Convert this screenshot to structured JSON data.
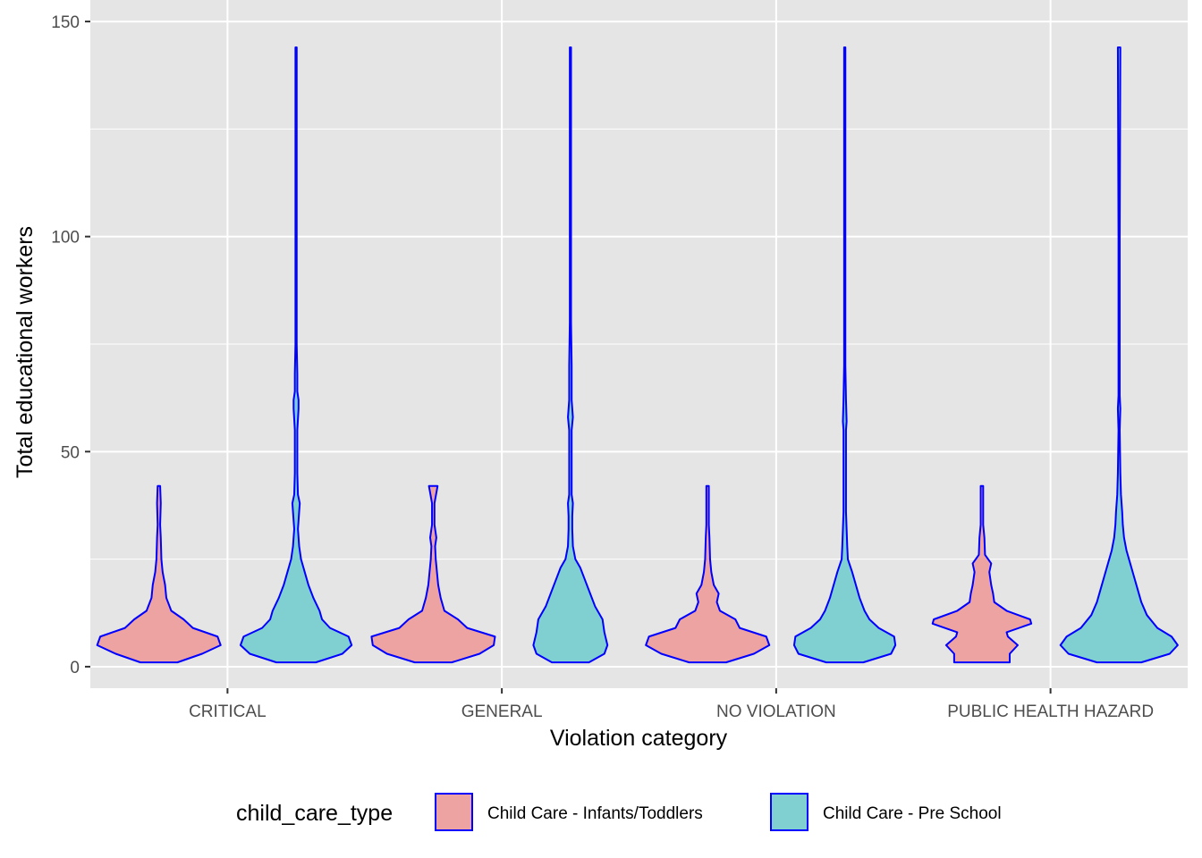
{
  "chart_data": {
    "type": "violin",
    "xlabel": "Violation category",
    "ylabel": "Total educational workers",
    "ylim": [
      -5,
      155
    ],
    "y_ticks": [
      0,
      50,
      100,
      150
    ],
    "grid": true,
    "legend_position": "bottom",
    "categories": [
      "CRITICAL",
      "GENERAL",
      "NO VIOLATION",
      "PUBLIC HEALTH HAZARD"
    ],
    "legend": {
      "title": "child_care_type",
      "entries": [
        "Child Care - Infants/Toddlers",
        "Child Care - Pre School"
      ]
    },
    "colors": {
      "panel_background": "#e5e5e5",
      "grid": "#ffffff",
      "outline": "#0000ff",
      "series": [
        "#eea3a3",
        "#80cfd1"
      ]
    },
    "series": [
      {
        "name": "Child Care - Infants/Toddlers",
        "violins": [
          {
            "category": "CRITICAL",
            "ymin": 1,
            "ymax": 42,
            "profile": [
              [
                1,
                0.3
              ],
              [
                3,
                0.7
              ],
              [
                5,
                1.0
              ],
              [
                7,
                0.95
              ],
              [
                9,
                0.55
              ],
              [
                11,
                0.4
              ],
              [
                13,
                0.2
              ],
              [
                16,
                0.12
              ],
              [
                19,
                0.1
              ],
              [
                22,
                0.06
              ],
              [
                25,
                0.04
              ],
              [
                30,
                0.03
              ],
              [
                33,
                0.02
              ],
              [
                38,
                0.03
              ],
              [
                42,
                0.02
              ]
            ]
          },
          {
            "category": "GENERAL",
            "ymin": 1,
            "ymax": 42,
            "profile": [
              [
                1,
                0.3
              ],
              [
                3,
                0.75
              ],
              [
                5,
                0.98
              ],
              [
                7,
                1.0
              ],
              [
                9,
                0.55
              ],
              [
                11,
                0.4
              ],
              [
                13,
                0.18
              ],
              [
                16,
                0.12
              ],
              [
                19,
                0.08
              ],
              [
                22,
                0.06
              ],
              [
                25,
                0.04
              ],
              [
                28,
                0.03
              ],
              [
                30,
                0.05
              ],
              [
                33,
                0.02
              ],
              [
                38,
                0.02
              ],
              [
                42,
                0.07
              ]
            ]
          },
          {
            "category": "NO VIOLATION",
            "ymin": 1,
            "ymax": 42,
            "profile": [
              [
                1,
                0.3
              ],
              [
                3,
                0.75
              ],
              [
                5,
                1.0
              ],
              [
                7,
                0.95
              ],
              [
                9,
                0.52
              ],
              [
                11,
                0.45
              ],
              [
                13,
                0.2
              ],
              [
                15,
                0.15
              ],
              [
                17,
                0.18
              ],
              [
                19,
                0.1
              ],
              [
                22,
                0.06
              ],
              [
                25,
                0.04
              ],
              [
                30,
                0.03
              ],
              [
                33,
                0.02
              ],
              [
                38,
                0.02
              ],
              [
                42,
                0.02
              ]
            ]
          },
          {
            "category": "PUBLIC HEALTH HAZARD",
            "ymin": 1,
            "ymax": 42,
            "profile": [
              [
                1,
                0.45
              ],
              [
                3,
                0.45
              ],
              [
                5,
                0.58
              ],
              [
                7,
                0.42
              ],
              [
                8,
                0.4
              ],
              [
                10,
                0.8
              ],
              [
                11,
                0.78
              ],
              [
                13,
                0.4
              ],
              [
                15,
                0.2
              ],
              [
                17,
                0.18
              ],
              [
                19,
                0.15
              ],
              [
                22,
                0.12
              ],
              [
                24,
                0.15
              ],
              [
                26,
                0.05
              ],
              [
                30,
                0.04
              ],
              [
                33,
                0.02
              ],
              [
                38,
                0.02
              ],
              [
                42,
                0.02
              ]
            ]
          }
        ]
      },
      {
        "name": "Child Care - Pre School",
        "violins": [
          {
            "category": "CRITICAL",
            "ymin": 1,
            "ymax": 144,
            "profile": [
              [
                1,
                0.32
              ],
              [
                3,
                0.75
              ],
              [
                5,
                0.9
              ],
              [
                7,
                0.85
              ],
              [
                9,
                0.55
              ],
              [
                11,
                0.42
              ],
              [
                13,
                0.38
              ],
              [
                16,
                0.28
              ],
              [
                19,
                0.2
              ],
              [
                22,
                0.14
              ],
              [
                25,
                0.08
              ],
              [
                28,
                0.05
              ],
              [
                32,
                0.03
              ],
              [
                36,
                0.05
              ],
              [
                38,
                0.06
              ],
              [
                40,
                0.03
              ],
              [
                45,
                0.02
              ],
              [
                55,
                0.02
              ],
              [
                60,
                0.04
              ],
              [
                62,
                0.04
              ],
              [
                64,
                0.02
              ],
              [
                68,
                0.02
              ],
              [
                75,
                0.01
              ],
              [
                100,
                0.01
              ],
              [
                144,
                0.01
              ]
            ]
          },
          {
            "category": "GENERAL",
            "ymin": 1,
            "ymax": 144,
            "profile": [
              [
                1,
                0.3
              ],
              [
                3,
                0.55
              ],
              [
                5,
                0.6
              ],
              [
                8,
                0.55
              ],
              [
                11,
                0.52
              ],
              [
                14,
                0.4
              ],
              [
                17,
                0.32
              ],
              [
                20,
                0.24
              ],
              [
                23,
                0.16
              ],
              [
                25,
                0.08
              ],
              [
                28,
                0.04
              ],
              [
                32,
                0.03
              ],
              [
                35,
                0.03
              ],
              [
                38,
                0.04
              ],
              [
                40,
                0.02
              ],
              [
                45,
                0.02
              ],
              [
                55,
                0.02
              ],
              [
                58,
                0.04
              ],
              [
                62,
                0.02
              ],
              [
                70,
                0.02
              ],
              [
                80,
                0.01
              ],
              [
                144,
                0.01
              ]
            ]
          },
          {
            "category": "NO VIOLATION",
            "ymin": 1,
            "ymax": 144,
            "profile": [
              [
                1,
                0.3
              ],
              [
                3,
                0.75
              ],
              [
                5,
                0.82
              ],
              [
                7,
                0.8
              ],
              [
                9,
                0.55
              ],
              [
                11,
                0.4
              ],
              [
                13,
                0.32
              ],
              [
                16,
                0.24
              ],
              [
                19,
                0.18
              ],
              [
                22,
                0.12
              ],
              [
                25,
                0.05
              ],
              [
                28,
                0.04
              ],
              [
                32,
                0.03
              ],
              [
                36,
                0.02
              ],
              [
                45,
                0.02
              ],
              [
                55,
                0.02
              ],
              [
                57,
                0.03
              ],
              [
                62,
                0.02
              ],
              [
                70,
                0.01
              ],
              [
                100,
                0.01
              ],
              [
                144,
                0.01
              ]
            ]
          },
          {
            "category": "PUBLIC HEALTH HAZARD",
            "ymin": 1,
            "ymax": 144,
            "profile": [
              [
                1,
                0.36
              ],
              [
                3,
                0.82
              ],
              [
                5,
                0.95
              ],
              [
                7,
                0.85
              ],
              [
                9,
                0.62
              ],
              [
                12,
                0.45
              ],
              [
                15,
                0.36
              ],
              [
                18,
                0.3
              ],
              [
                21,
                0.24
              ],
              [
                24,
                0.18
              ],
              [
                27,
                0.12
              ],
              [
                30,
                0.08
              ],
              [
                33,
                0.06
              ],
              [
                36,
                0.05
              ],
              [
                40,
                0.03
              ],
              [
                45,
                0.02
              ],
              [
                55,
                0.01
              ],
              [
                60,
                0.02
              ],
              [
                63,
                0.01
              ],
              [
                100,
                0.01
              ],
              [
                144,
                0.02
              ]
            ]
          }
        ]
      }
    ]
  }
}
